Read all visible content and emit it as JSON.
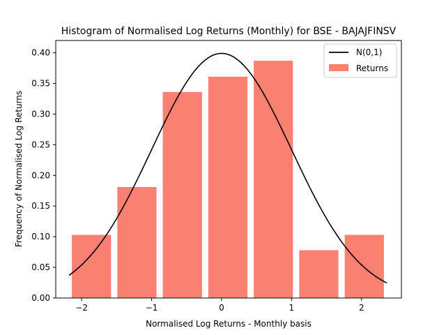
{
  "chart_data": {
    "type": "bar",
    "title": "Histogram of Normalised Log Returns (Monthly) for BSE - BAJAJFINSV",
    "xlabel": "Normalised Log Returns - Monthly basis",
    "ylabel": "Frequency of Normalised Log Returns",
    "xlim": [
      -2.37,
      2.57
    ],
    "ylim": [
      0,
      0.42
    ],
    "xticks": [
      -2,
      -1,
      0,
      1,
      2
    ],
    "xtick_labels": [
      "−2",
      "−1",
      "0",
      "1",
      "2"
    ],
    "yticks": [
      0.0,
      0.05,
      0.1,
      0.15,
      0.2,
      0.25,
      0.3,
      0.35,
      0.4
    ],
    "ytick_labels": [
      "0.00",
      "0.05",
      "0.10",
      "0.15",
      "0.20",
      "0.25",
      "0.30",
      "0.35",
      "0.40"
    ],
    "bars": [
      {
        "x0": -2.14,
        "x1": -1.58,
        "value": 0.103
      },
      {
        "x0": -1.49,
        "x1": -0.93,
        "value": 0.181
      },
      {
        "x0": -0.84,
        "x1": -0.28,
        "value": 0.336
      },
      {
        "x0": -0.19,
        "x1": 0.37,
        "value": 0.361
      },
      {
        "x0": 0.46,
        "x1": 1.02,
        "value": 0.387
      },
      {
        "x0": 1.11,
        "x1": 1.67,
        "value": 0.078
      },
      {
        "x0": 1.76,
        "x1": 2.32,
        "value": 0.103
      }
    ],
    "curve": {
      "name": "N(0,1)",
      "mean": 0,
      "std": 1,
      "x_start": -2.18,
      "x_end": 2.36
    },
    "series": [
      {
        "name": "N(0,1)",
        "type": "line",
        "color": "#000000"
      },
      {
        "name": "Returns",
        "type": "bar",
        "color": "#fa8072"
      }
    ],
    "legend_position": "top-right",
    "grid": false
  }
}
